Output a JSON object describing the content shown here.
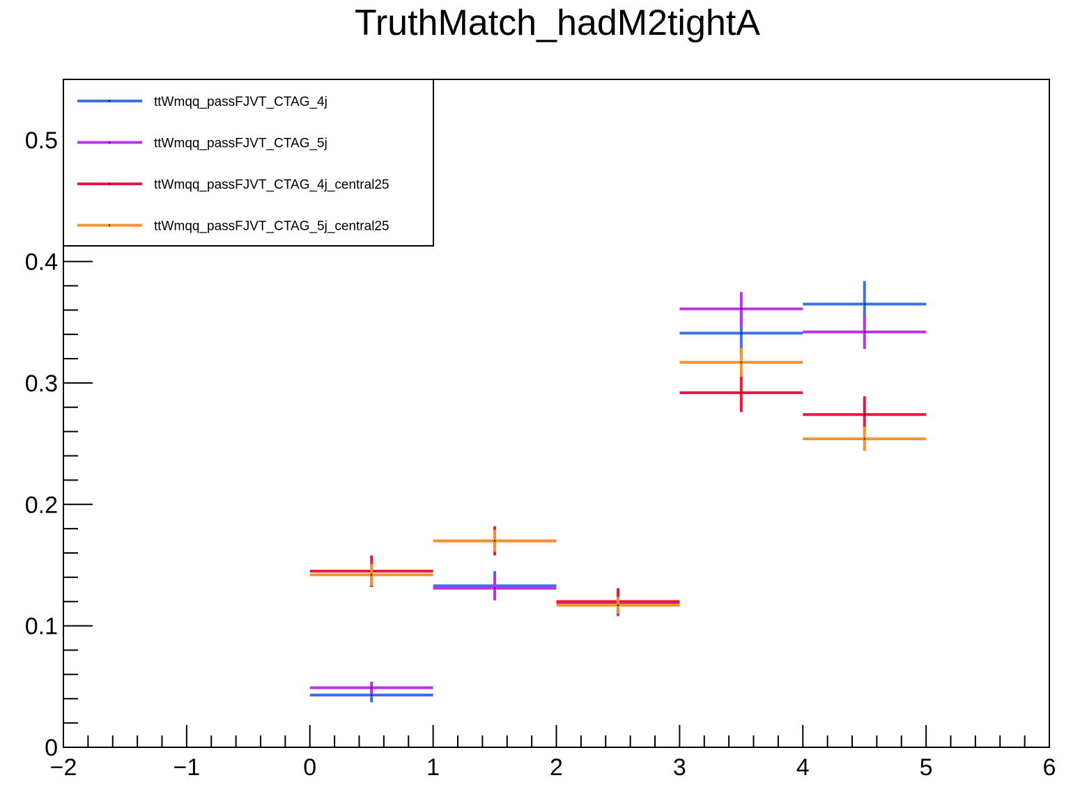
{
  "chart_data": {
    "type": "scatter",
    "title": "TruthMatch_hadM2tightA",
    "xlabel": "",
    "ylabel": "",
    "xlim": [
      -2,
      6
    ],
    "ylim": [
      0,
      0.55
    ],
    "x_ticks": [
      -2,
      -1,
      0,
      1,
      2,
      3,
      4,
      5,
      6
    ],
    "x_tick_labels": [
      "−2",
      "−1",
      "0",
      "1",
      "2",
      "3",
      "4",
      "5",
      "6"
    ],
    "y_ticks": [
      0,
      0.1,
      0.2,
      0.3,
      0.4,
      0.5
    ],
    "y_tick_labels": [
      "0",
      "0.1",
      "0.2",
      "0.3",
      "0.4",
      "0.5"
    ],
    "grid": false,
    "legend_position": "top-left",
    "series": [
      {
        "name": "ttWmqq_passFJVT_CTAG_4j",
        "color": "#3f6fe8",
        "points": [
          {
            "xlow": 0,
            "xhigh": 1,
            "y": 0.043,
            "err": 0.006
          },
          {
            "xlow": 1,
            "xhigh": 2,
            "y": 0.133,
            "err": 0.012
          },
          {
            "xlow": 2,
            "xhigh": 3,
            "y": 0.117,
            "err": 0.009
          },
          {
            "xlow": 3,
            "xhigh": 4,
            "y": 0.341,
            "err": 0.018
          },
          {
            "xlow": 4,
            "xhigh": 5,
            "y": 0.365,
            "err": 0.019
          }
        ]
      },
      {
        "name": "ttWmqq_passFJVT_CTAG_5j",
        "color": "#bb33e8",
        "points": [
          {
            "xlow": 0,
            "xhigh": 1,
            "y": 0.049,
            "err": 0.005
          },
          {
            "xlow": 1,
            "xhigh": 2,
            "y": 0.131,
            "err": 0.01
          },
          {
            "xlow": 2,
            "xhigh": 3,
            "y": 0.119,
            "err": 0.008
          },
          {
            "xlow": 3,
            "xhigh": 4,
            "y": 0.361,
            "err": 0.014
          },
          {
            "xlow": 4,
            "xhigh": 5,
            "y": 0.342,
            "err": 0.014
          }
        ]
      },
      {
        "name": "ttWmqq_passFJVT_CTAG_4j_central25",
        "color": "#e8173f",
        "points": [
          {
            "xlow": 0,
            "xhigh": 1,
            "y": 0.145,
            "err": 0.013
          },
          {
            "xlow": 1,
            "xhigh": 2,
            "y": 0.17,
            "err": 0.012
          },
          {
            "xlow": 2,
            "xhigh": 3,
            "y": 0.12,
            "err": 0.011
          },
          {
            "xlow": 3,
            "xhigh": 4,
            "y": 0.292,
            "err": 0.016
          },
          {
            "xlow": 4,
            "xhigh": 5,
            "y": 0.274,
            "err": 0.015
          }
        ]
      },
      {
        "name": "ttWmqq_passFJVT_CTAG_5j_central25",
        "color": "#f39330",
        "points": [
          {
            "xlow": 0,
            "xhigh": 1,
            "y": 0.142,
            "err": 0.009
          },
          {
            "xlow": 1,
            "xhigh": 2,
            "y": 0.17,
            "err": 0.009
          },
          {
            "xlow": 2,
            "xhigh": 3,
            "y": 0.117,
            "err": 0.007
          },
          {
            "xlow": 3,
            "xhigh": 4,
            "y": 0.317,
            "err": 0.012
          },
          {
            "xlow": 4,
            "xhigh": 5,
            "y": 0.254,
            "err": 0.01
          }
        ]
      }
    ]
  }
}
